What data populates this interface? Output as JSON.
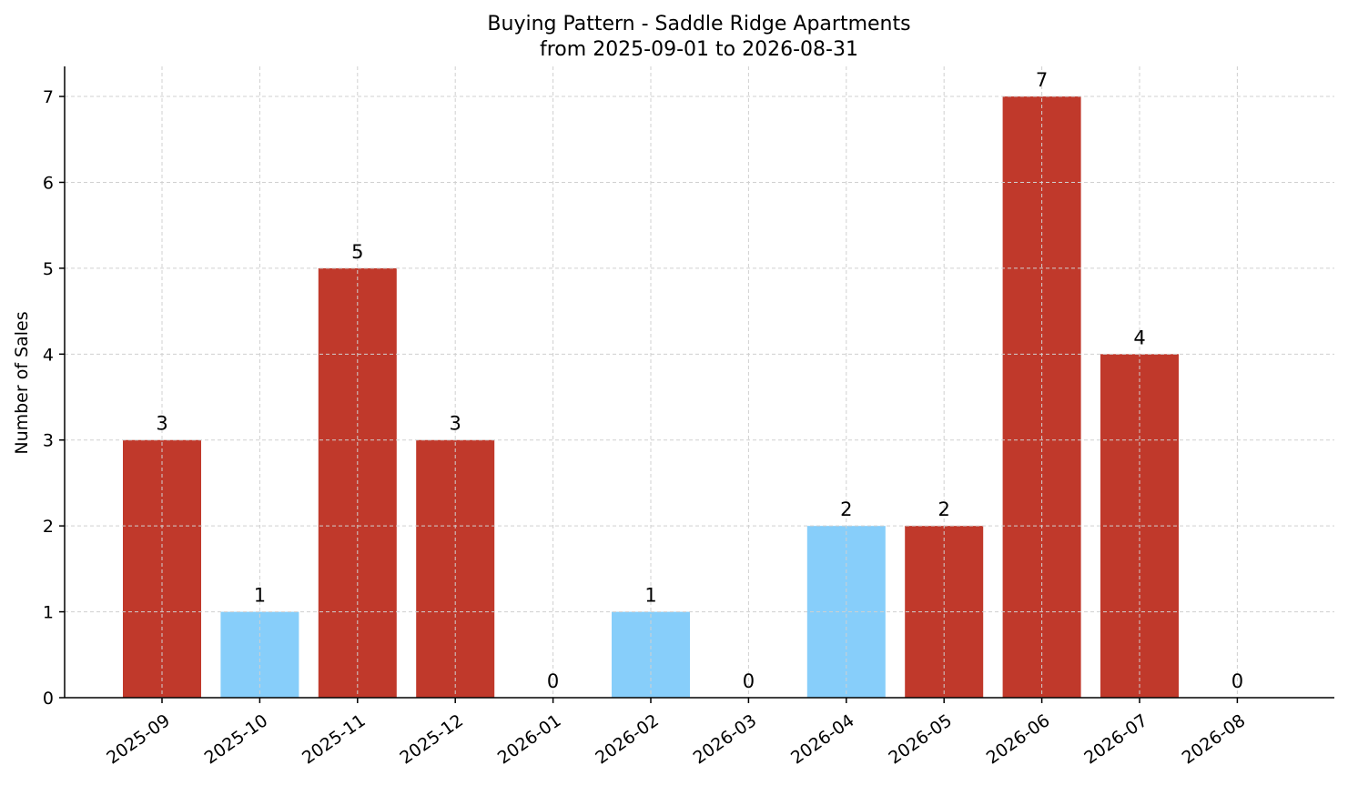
{
  "chart_data": {
    "type": "bar",
    "title": "Buying Pattern - Saddle Ridge Apartments",
    "subtitle": "from 2025-09-01 to 2026-08-31",
    "xlabel": "",
    "ylabel": "Number of Sales",
    "ylim": [
      0,
      7.35
    ],
    "yticks": [
      0,
      1,
      2,
      3,
      4,
      5,
      6,
      7
    ],
    "grid": true,
    "categories": [
      "2025-09",
      "2025-10",
      "2025-11",
      "2025-12",
      "2026-01",
      "2026-02",
      "2026-03",
      "2026-04",
      "2026-05",
      "2026-06",
      "2026-07",
      "2026-08"
    ],
    "values": [
      3,
      1,
      5,
      3,
      0,
      1,
      0,
      2,
      2,
      7,
      4,
      0
    ],
    "bar_colors": [
      "#c0392b",
      "#87cefa",
      "#c0392b",
      "#c0392b",
      "#c0392b",
      "#87cefa",
      "#c0392b",
      "#87cefa",
      "#c0392b",
      "#c0392b",
      "#c0392b",
      "#c0392b"
    ]
  }
}
